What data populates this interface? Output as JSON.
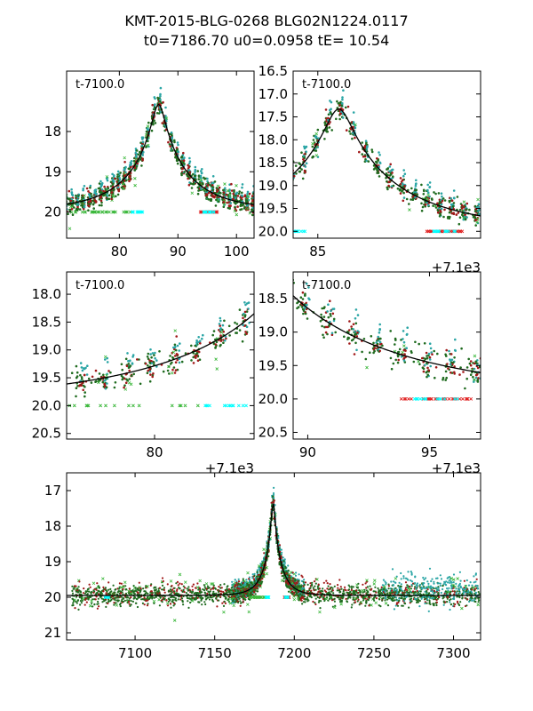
{
  "title": [
    "KMT-2015-BLG-0268 BLG02N1224.0117",
    "t0=7186.70 u0=0.0958 tE=  10.54"
  ],
  "colors": {
    "dark_green": "#1f6b1f",
    "dark_red": "#a01818",
    "teal": "#2aa5a5",
    "light_green": "#3cb83c",
    "red": "#e02020",
    "cyan": "#00ffff",
    "model": "#000000"
  },
  "chart_data": [
    {
      "type": "scatter",
      "panel": "top-left",
      "annotation": "t-7100.0",
      "offset_label": "",
      "xlim": [
        71,
        103
      ],
      "ylim": [
        20.65,
        16.5
      ],
      "xticks": [
        "80",
        "90",
        "100"
      ],
      "xtick_values": [
        80,
        90,
        100
      ],
      "yticks": [
        "18",
        "19",
        "20"
      ],
      "ytick_values": [
        18,
        19,
        20
      ]
    },
    {
      "type": "scatter",
      "panel": "top-right",
      "annotation": "t-7100.0",
      "offset_label": "+7.1e3",
      "xlim": [
        83,
        98.2
      ],
      "ylim": [
        20.15,
        16.5
      ],
      "xticks": [
        "85"
      ],
      "xtick_values": [
        85
      ],
      "yticks": [
        "16.5",
        "17.0",
        "17.5",
        "18.0",
        "18.5",
        "19.0",
        "19.5",
        "20.0"
      ],
      "ytick_values": [
        16.5,
        17.0,
        17.5,
        18.0,
        18.5,
        19.0,
        19.5,
        20.0
      ]
    },
    {
      "type": "scatter",
      "panel": "middle-left",
      "annotation": "t-7100.0",
      "offset_label": "+7.1e3",
      "xlim": [
        76.2,
        84.3
      ],
      "ylim": [
        20.6,
        17.6
      ],
      "xticks": [
        "80"
      ],
      "xtick_values": [
        80
      ],
      "yticks": [
        "18.0",
        "18.5",
        "19.0",
        "19.5",
        "20.0",
        "20.5"
      ],
      "ytick_values": [
        18.0,
        18.5,
        19.0,
        19.5,
        20.0,
        20.5
      ]
    },
    {
      "type": "scatter",
      "panel": "middle-right",
      "annotation": "t-7100.0",
      "offset_label": "+7.1e3",
      "xlim": [
        89.4,
        97.1
      ],
      "ylim": [
        20.6,
        18.1
      ],
      "xticks": [
        "90",
        "95"
      ],
      "xtick_values": [
        90,
        95
      ],
      "yticks": [
        "18.5",
        "19.0",
        "19.5",
        "20.0",
        "20.5"
      ],
      "ytick_values": [
        18.5,
        19.0,
        19.5,
        20.0,
        20.5
      ]
    },
    {
      "type": "scatter",
      "panel": "bottom",
      "annotation": "",
      "offset_label": "",
      "xlim": [
        7057,
        7317
      ],
      "ylim": [
        21.2,
        16.5
      ],
      "xticks": [
        "7100",
        "7150",
        "7200",
        "7250",
        "7300"
      ],
      "xtick_values": [
        7100,
        7150,
        7200,
        7250,
        7300
      ],
      "yticks": [
        "17",
        "18",
        "19",
        "20",
        "21"
      ],
      "ytick_values": [
        17,
        18,
        19,
        20,
        21
      ]
    }
  ],
  "model": {
    "t0": 7186.7,
    "u0": 0.0958,
    "tE": 10.54,
    "base_mag": 19.95,
    "peak_mag": 17.33
  }
}
